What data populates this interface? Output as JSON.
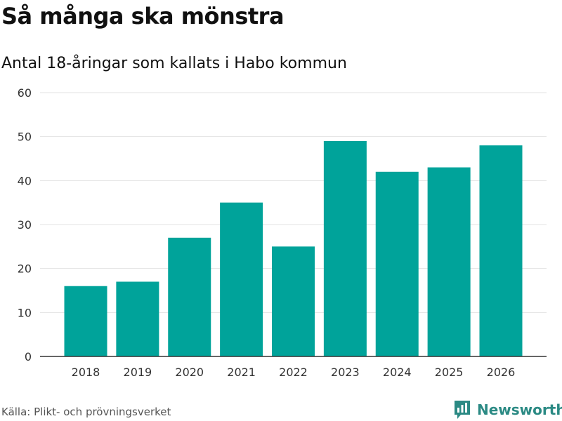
{
  "header": {
    "title": "Så många ska mönstra",
    "subtitle": "Antal 18-åringar som kallats i Habo kommun"
  },
  "footer": {
    "source": "Källa: Plikt- och prövningsverket",
    "brand": "Newsworthy"
  },
  "colors": {
    "bar": "#00a39a",
    "grid": "#e3e3e3",
    "axis": "#333333",
    "brand": "#2b8a84"
  },
  "chart_data": {
    "type": "bar",
    "title": "Så många ska mönstra",
    "subtitle": "Antal 18-åringar som kallats i Habo kommun",
    "categories": [
      "2018",
      "2019",
      "2020",
      "2021",
      "2022",
      "2023",
      "2024",
      "2025",
      "2026"
    ],
    "values": [
      16,
      17,
      27,
      35,
      25,
      49,
      42,
      43,
      48
    ],
    "xlabel": "",
    "ylabel": "",
    "ylim": [
      0,
      60
    ],
    "yticks": [
      0,
      10,
      20,
      30,
      40,
      50,
      60
    ],
    "grid": true,
    "legend": "none"
  }
}
